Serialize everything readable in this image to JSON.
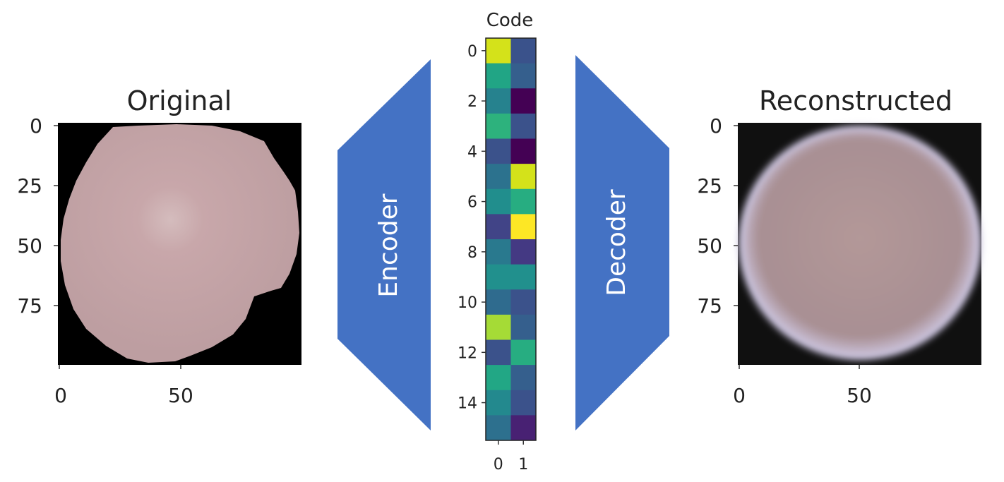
{
  "original": {
    "title": "Original",
    "y_ticks": [
      "0",
      "25",
      "50",
      "75"
    ],
    "x_ticks": [
      "0",
      "50"
    ]
  },
  "encoder": {
    "label": "Encoder",
    "color": "#4472c4"
  },
  "code": {
    "title": "Code",
    "y_ticks": [
      "0",
      "2",
      "4",
      "6",
      "8",
      "10",
      "12",
      "14"
    ],
    "x_ticks": [
      "0",
      "1"
    ],
    "cells": [
      [
        "#d4e21a",
        "#3a528b"
      ],
      [
        "#21a585",
        "#355f8d"
      ],
      [
        "#26828e",
        "#440154"
      ],
      [
        "#2db27d",
        "#3b528b"
      ],
      [
        "#3b528b",
        "#440154"
      ],
      [
        "#2c728e",
        "#d4e21a"
      ],
      [
        "#218e8d",
        "#27ad81"
      ],
      [
        "#414487",
        "#fde725"
      ],
      [
        "#29798e",
        "#443983"
      ],
      [
        "#21908d",
        "#21908d"
      ],
      [
        "#2f6b8e",
        "#3b528b"
      ],
      [
        "#a5db36",
        "#355f8d"
      ],
      [
        "#3b528b",
        "#27ad81"
      ],
      [
        "#22a785",
        "#355f8d"
      ],
      [
        "#23898e",
        "#3b528b"
      ],
      [
        "#2d708e",
        "#482173"
      ]
    ]
  },
  "decoder": {
    "label": "Decoder",
    "color": "#4472c4"
  },
  "reconstructed": {
    "title": "Reconstructed",
    "y_ticks": [
      "0",
      "25",
      "50",
      "75"
    ],
    "x_ticks": [
      "0",
      "50"
    ]
  }
}
